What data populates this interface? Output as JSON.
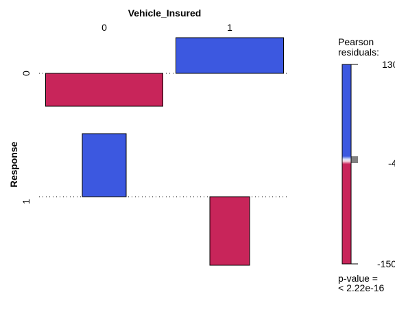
{
  "chart_data": {
    "type": "association",
    "title": "",
    "xlabel": "Vehicle_Insured",
    "ylabel": "Response",
    "x_categories": [
      "0",
      "1"
    ],
    "y_categories": [
      "0",
      "1"
    ],
    "cells": [
      {
        "x": "0",
        "y": "0",
        "residual": -60
      },
      {
        "x": "1",
        "y": "0",
        "residual": 65
      },
      {
        "x": "0",
        "y": "1",
        "residual": 115
      },
      {
        "x": "1",
        "y": "1",
        "residual": -125
      }
    ],
    "legend": {
      "title_line1": "Pearson",
      "title_line2": "residuals:",
      "max_label": "130",
      "mid_label": "-4",
      "min_label": "-150",
      "range": [
        -150,
        130
      ]
    },
    "pvalue_line1": "p-value =",
    "pvalue_line2": "< 2.22e-16",
    "colors": {
      "positive": "#3c58e0",
      "negative": "#c8255a"
    }
  }
}
